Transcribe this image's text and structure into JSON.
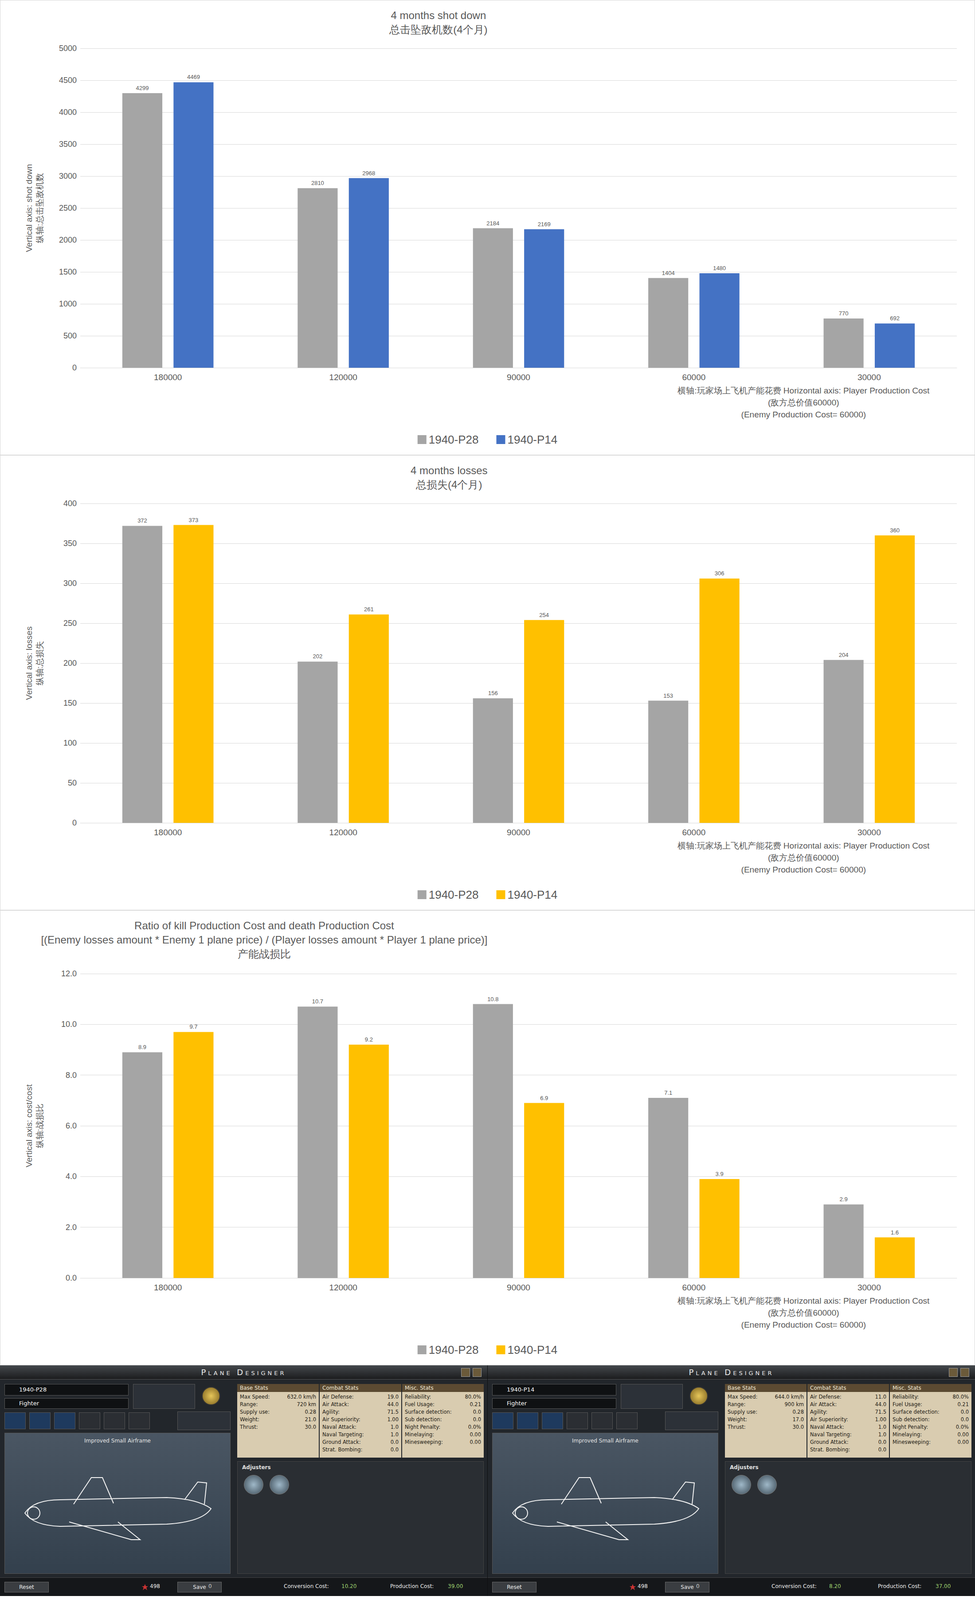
{
  "chart_data": [
    {
      "type": "bar",
      "title": [
        "4 months shot down",
        "总击坠敌机数(4个月)"
      ],
      "ylabel": [
        "Vertical axis: shot down",
        "纵轴:总击坠敌机数"
      ],
      "annotation": [
        "横轴:玩家场上飞机产能花费 Horizontal axis: Player Production Cost",
        "(敌方总价值60000)",
        "(Enemy Production Cost= 60000)"
      ],
      "categories": [
        "180000",
        "120000",
        "90000",
        "60000",
        "30000"
      ],
      "series": [
        {
          "name": "1940-P28",
          "color": "#a5a5a5",
          "values": [
            4299,
            2810,
            2184,
            1404,
            770
          ]
        },
        {
          "name": "1940-P14",
          "color": "#4472c4",
          "values": [
            4469,
            2968,
            2169,
            1480,
            692
          ]
        }
      ],
      "ylim": [
        0,
        5000
      ],
      "yticks": [
        0,
        500,
        1000,
        1500,
        2000,
        2500,
        3000,
        3500,
        4000,
        4500,
        5000
      ],
      "grid": true,
      "legend": "bottom",
      "data_labels": true
    },
    {
      "type": "bar",
      "title": [
        "4 months losses",
        "总损失(4个月)"
      ],
      "ylabel": [
        "Vertical axis: losses",
        "纵轴:总损失"
      ],
      "annotation": [
        "横轴:玩家场上飞机产能花费 Horizontal axis: Player Production Cost",
        "(敌方总价值60000)",
        "(Enemy Production Cost= 60000)"
      ],
      "categories": [
        "180000",
        "120000",
        "90000",
        "60000",
        "30000"
      ],
      "series": [
        {
          "name": "1940-P28",
          "color": "#a5a5a5",
          "values": [
            372,
            202,
            156,
            153,
            204
          ]
        },
        {
          "name": "1940-P14",
          "color": "#ffc000",
          "values": [
            373,
            261,
            254,
            306,
            360
          ]
        }
      ],
      "ylim": [
        0,
        400
      ],
      "yticks": [
        0,
        50,
        100,
        150,
        200,
        250,
        300,
        350,
        400
      ],
      "grid": true,
      "legend": "bottom",
      "data_labels": true
    },
    {
      "type": "bar",
      "title": [
        "Ratio of kill Production Cost and death Production Cost",
        "[(Enemy losses amount * Enemy 1 plane price) / (Player losses amount * Player 1 plane price)]",
        "产能战损比"
      ],
      "ylabel": [
        "Vertical axis: cost/cost",
        "纵轴:战损比"
      ],
      "annotation": [
        "横轴:玩家场上飞机产能花费 Horizontal axis: Player Production Cost",
        "(敌方总价值60000)",
        "(Enemy Production Cost= 60000)"
      ],
      "categories": [
        "180000",
        "120000",
        "90000",
        "60000",
        "30000"
      ],
      "series": [
        {
          "name": "1940-P28",
          "color": "#a5a5a5",
          "values": [
            8.9,
            10.7,
            10.8,
            7.1,
            2.9
          ]
        },
        {
          "name": "1940-P14",
          "color": "#ffc000",
          "values": [
            9.7,
            9.2,
            6.9,
            3.9,
            1.6
          ]
        }
      ],
      "ylim": [
        0,
        12
      ],
      "yticks": [
        {
          "value": 0,
          "label": "0.0"
        },
        {
          "value": 2,
          "label": "2.0"
        },
        {
          "value": 4,
          "label": "4.0"
        },
        {
          "value": 6,
          "label": "6.0"
        },
        {
          "value": 8,
          "label": "8.0"
        },
        {
          "value": 10,
          "label": "10.0"
        },
        {
          "value": 12,
          "label": "12.0"
        }
      ],
      "grid": true,
      "legend": "bottom",
      "data_labels": true
    }
  ],
  "screenshots": [
    {
      "header": "Plane Designer",
      "name": "1940-P28",
      "role": "Fighter",
      "airframe": "Improved Small Airframe",
      "tabs": [
        "Base Stats",
        "Combat Stats",
        "Misc. Stats"
      ],
      "base_stats": [
        [
          "Max Speed:",
          "632.0 km/h"
        ],
        [
          "Range:",
          "720 km"
        ],
        [
          "Supply use:",
          "0.28"
        ],
        [
          "Weight:",
          "21.0"
        ],
        [
          "Thrust:",
          "30.0"
        ]
      ],
      "combat_stats": [
        [
          "Air Defense:",
          "19.0"
        ],
        [
          "Air Attack:",
          "44.0"
        ],
        [
          "Agility:",
          "71.5"
        ],
        [
          "Air Superiority:",
          "1.00"
        ],
        [
          "Naval Attack:",
          "1.0"
        ],
        [
          "Naval Targeting:",
          "1.0"
        ],
        [
          "Ground Attack:",
          "0.0"
        ],
        [
          "Strat. Bombing:",
          "0.0"
        ]
      ],
      "misc_stats": [
        [
          "Reliability:",
          "80.0%"
        ],
        [
          "Fuel Usage:",
          "0.21"
        ],
        [
          "Surface detection:",
          "0.0"
        ],
        [
          "Sub detection:",
          "0.0"
        ],
        [
          "Night Penalty:",
          "0.0%"
        ],
        [
          "Minelaying:",
          "0.00"
        ],
        [
          "Minesweeping:",
          "0.00"
        ]
      ],
      "adjusters": "Adjusters",
      "footer": {
        "reset": "Reset",
        "points": "498",
        "save": "Save",
        "save_count": "0",
        "conversion": "Conversion Cost:",
        "conversion_value": "10.20",
        "production": "Production Cost:",
        "production_value": "39.00"
      }
    },
    {
      "header": "Plane Designer",
      "name": "1940-P14",
      "role": "Fighter",
      "airframe": "Improved Small Airframe",
      "tabs": [
        "Base Stats",
        "Combat Stats",
        "Misc. Stats"
      ],
      "base_stats": [
        [
          "Max Speed:",
          "644.0 km/h"
        ],
        [
          "Range:",
          "900 km"
        ],
        [
          "Supply use:",
          "0.28"
        ],
        [
          "Weight:",
          "17.0"
        ],
        [
          "Thrust:",
          "30.0"
        ]
      ],
      "combat_stats": [
        [
          "Air Defense:",
          "11.0"
        ],
        [
          "Air Attack:",
          "44.0"
        ],
        [
          "Agility:",
          "71.5"
        ],
        [
          "Air Superiority:",
          "1.00"
        ],
        [
          "Naval Attack:",
          "1.0"
        ],
        [
          "Naval Targeting:",
          "1.0"
        ],
        [
          "Ground Attack:",
          "0.0"
        ],
        [
          "Strat. Bombing:",
          "0.0"
        ]
      ],
      "misc_stats": [
        [
          "Reliability:",
          "80.0%"
        ],
        [
          "Fuel Usage:",
          "0.21"
        ],
        [
          "Surface detection:",
          "0.0"
        ],
        [
          "Sub detection:",
          "0.0"
        ],
        [
          "Night Penalty:",
          "0.0%"
        ],
        [
          "Minelaying:",
          "0.00"
        ],
        [
          "Minesweeping:",
          "0.00"
        ]
      ],
      "adjusters": "Adjusters",
      "footer": {
        "reset": "Reset",
        "points": "498",
        "save": "Save",
        "save_count": "0",
        "conversion": "Conversion Cost:",
        "conversion_value": "8.20",
        "production": "Production Cost:",
        "production_value": "37.00"
      }
    }
  ]
}
